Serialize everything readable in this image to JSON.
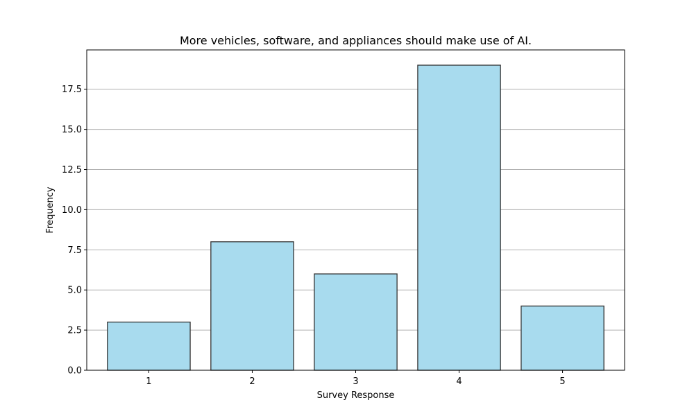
{
  "chart_data": {
    "type": "bar",
    "title": "More vehicles, software, and appliances should make use of AI.",
    "xlabel": "Survey Response",
    "ylabel": "Frequency",
    "categories": [
      "1",
      "2",
      "3",
      "4",
      "5"
    ],
    "values": [
      3,
      8,
      6,
      19,
      4
    ],
    "ylim": [
      0,
      19.95
    ],
    "yticks": [
      0.0,
      2.5,
      5.0,
      7.5,
      10.0,
      12.5,
      15.0,
      17.5
    ],
    "ytick_labels": [
      "0.0",
      "2.5",
      "5.0",
      "7.5",
      "10.0",
      "12.5",
      "15.0",
      "17.5"
    ],
    "grid": "y-axis",
    "bar_color": "#a8dbee",
    "bar_edge_color": "#333333"
  }
}
